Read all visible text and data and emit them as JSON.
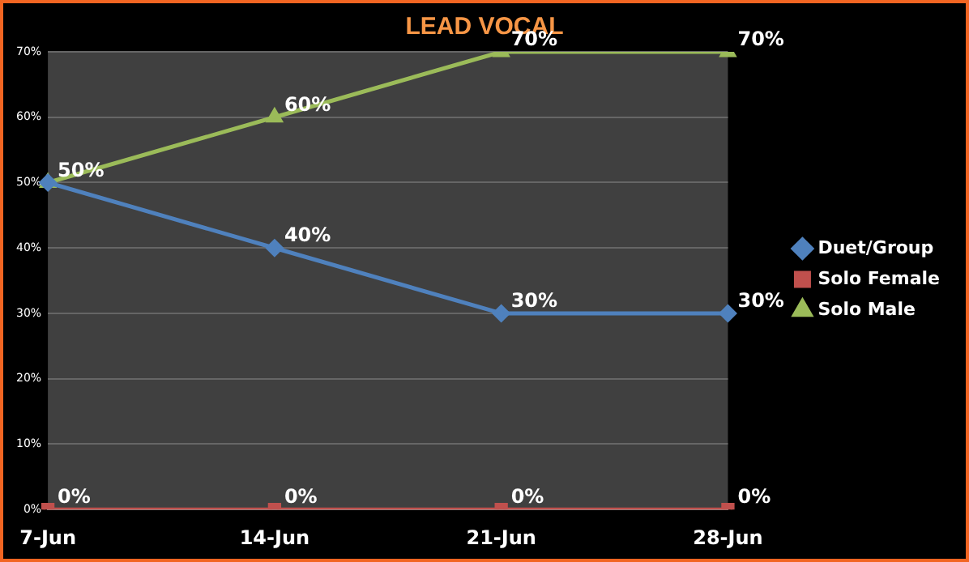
{
  "chart_data": {
    "type": "line",
    "title": "LEAD VOCAL",
    "categories": [
      "7-Jun",
      "14-Jun",
      "21-Jun",
      "28-Jun"
    ],
    "series": [
      {
        "name": "Duet/Group",
        "color": "#4f81bd",
        "marker": "diamond",
        "values": [
          50,
          40,
          30,
          30
        ],
        "value_labels": [
          null,
          "40%",
          "30%",
          "30%"
        ]
      },
      {
        "name": "Solo Female",
        "color": "#c0504d",
        "marker": "square",
        "values": [
          0,
          0,
          0,
          0
        ],
        "value_labels": [
          "0%",
          "0%",
          "0%",
          "0%"
        ]
      },
      {
        "name": "Solo Male",
        "color": "#9bbb59",
        "marker": "triangle",
        "values": [
          50,
          60,
          70,
          70
        ],
        "value_labels": [
          "50%",
          "60%",
          "70%",
          "70%"
        ]
      }
    ],
    "ylim": [
      0,
      70
    ],
    "yticks": [
      {
        "value": 0,
        "label": "0%"
      },
      {
        "value": 10,
        "label": "10%"
      },
      {
        "value": 20,
        "label": "20%"
      },
      {
        "value": 30,
        "label": "30%"
      },
      {
        "value": 40,
        "label": "40%"
      },
      {
        "value": 50,
        "label": "50%"
      },
      {
        "value": 60,
        "label": "60%"
      },
      {
        "value": 70,
        "label": "70%"
      }
    ],
    "grid": "y",
    "legend": "right"
  }
}
